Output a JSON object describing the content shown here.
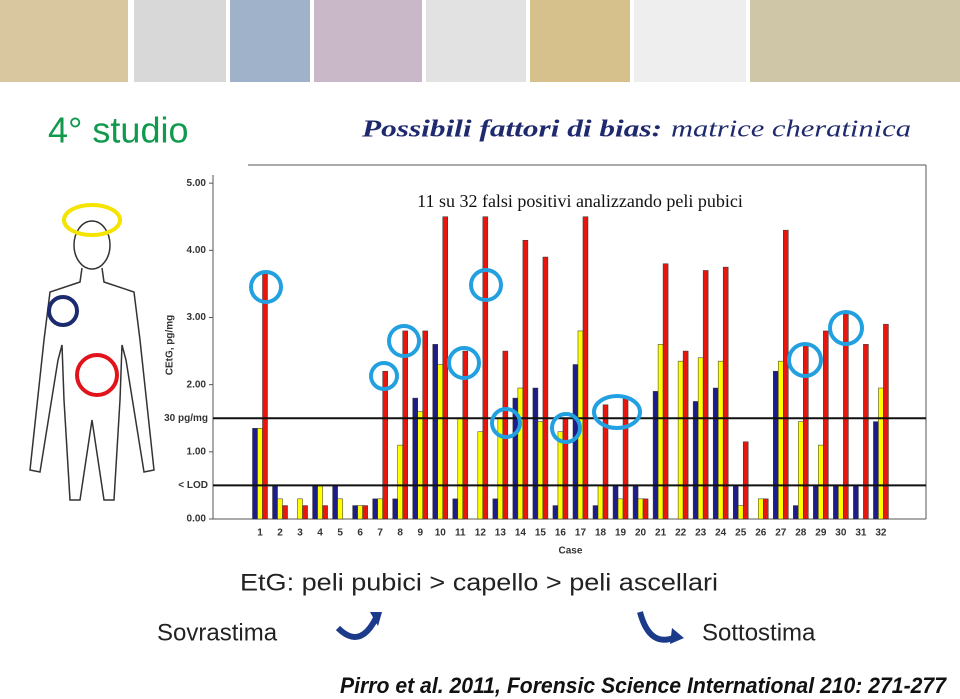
{
  "slide": {
    "heading": "4° studio",
    "title_bold": "Possibili fattori di bias:",
    "title_rest": "matrice cheratinica",
    "finding": "EtG:  peli pubici > capello > peli ascellari",
    "left_label": "Sovrastima",
    "right_label": "Sottostima",
    "citation": "Pirro et al. 2011, Forensic Science International 210: 271-277"
  },
  "chart_data": {
    "type": "bar",
    "annotation": "11 su 32 falsi positivi analizzando peli pubici",
    "x_label": "Case",
    "y_label": "CEtG, pg/mg",
    "categories": [
      "1",
      "2",
      "3",
      "4",
      "5",
      "6",
      "7",
      "8",
      "9",
      "10",
      "11",
      "12",
      "13",
      "14",
      "15",
      "16",
      "17",
      "18",
      "19",
      "20",
      "21",
      "22",
      "23",
      "24",
      "25",
      "26",
      "27",
      "28",
      "29",
      "30",
      "31",
      "32"
    ],
    "series": [
      {
        "color": "#1c1c8a",
        "values": [
          1.35,
          0.5,
          0,
          0.5,
          0.5,
          0.2,
          0.3,
          0.3,
          1.8,
          2.6,
          0.3,
          0,
          0.3,
          1.8,
          1.95,
          0.2,
          2.3,
          0.2,
          0.5,
          0.5,
          1.9,
          0,
          1.75,
          1.95,
          0.5,
          0,
          2.2,
          0.2,
          0.5,
          0.5,
          0.5,
          1.45
        ]
      },
      {
        "color": "#ffff00",
        "values": [
          1.35,
          0.3,
          0.3,
          0.5,
          0.3,
          0.2,
          0.3,
          1.1,
          1.6,
          2.3,
          1.5,
          1.3,
          1.5,
          1.95,
          1.45,
          1.3,
          2.8,
          0.5,
          0.3,
          0.3,
          2.6,
          2.35,
          2.4,
          2.35,
          0.2,
          0.3,
          2.35,
          1.45,
          1.1,
          0.5,
          0,
          1.95
        ]
      },
      {
        "color": "#e8160c",
        "values": [
          3.65,
          0.2,
          0.2,
          0.2,
          0,
          0.2,
          2.2,
          2.8,
          2.8,
          4.5,
          2.5,
          4.5,
          2.5,
          4.15,
          3.9,
          1.5,
          4.5,
          1.7,
          1.8,
          0.3,
          3.8,
          2.5,
          3.7,
          3.75,
          1.15,
          0.3,
          4.3,
          2.6,
          2.8,
          3.05,
          2.6,
          2.9
        ]
      }
    ],
    "ylim": [
      0,
      5.27
    ],
    "yticks": [
      {
        "value": 0,
        "label": "0.00"
      },
      {
        "value": 1,
        "label": "1.00"
      },
      {
        "value": 2,
        "label": "2.00"
      },
      {
        "value": 3,
        "label": "3.00"
      },
      {
        "value": 4,
        "label": "4.00"
      },
      {
        "value": 5,
        "label": "5.00"
      }
    ],
    "reference_lines": [
      {
        "value": 1.5,
        "label": "30 pg/mg"
      },
      {
        "value": 0.5,
        "label": "< LOD"
      }
    ],
    "grid": false
  }
}
